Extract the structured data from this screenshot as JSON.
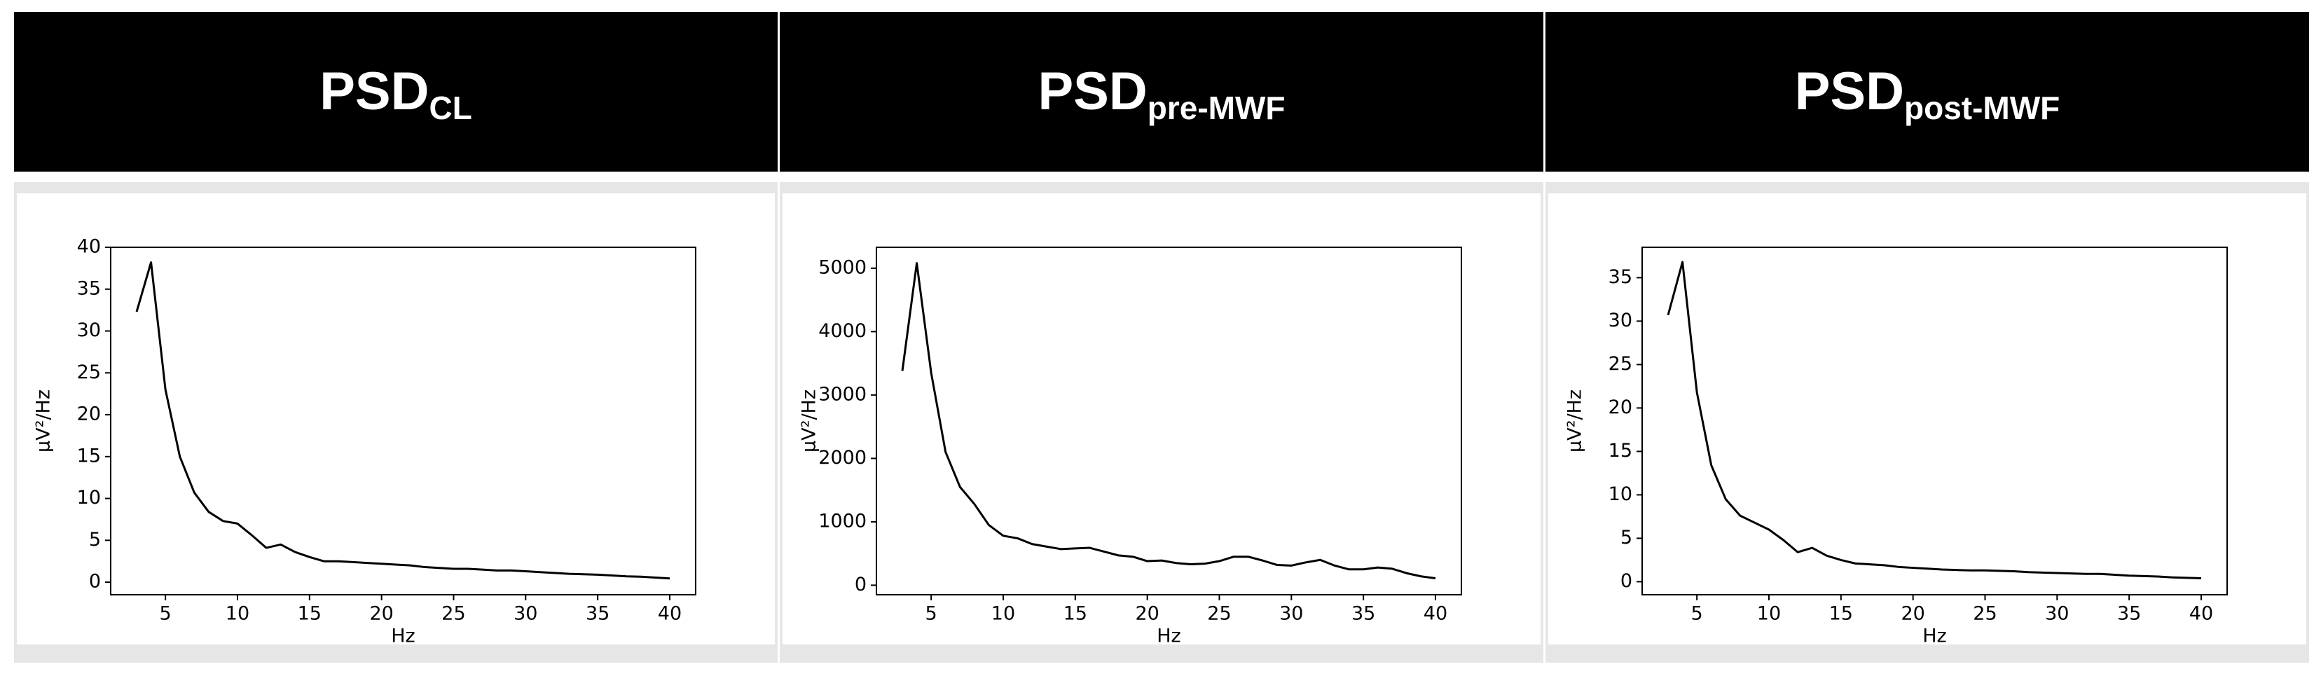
{
  "chart_data": [
    {
      "type": "line",
      "title": "PSD",
      "title_sub": "CL",
      "x_label": "Hz",
      "y_label": "μV²/Hz",
      "x": [
        3,
        4,
        5,
        6,
        7,
        8,
        9,
        10,
        11,
        12,
        13,
        14,
        15,
        16,
        17,
        18,
        19,
        20,
        21,
        22,
        23,
        24,
        25,
        26,
        27,
        28,
        29,
        30,
        31,
        32,
        33,
        34,
        35,
        36,
        37,
        38,
        39,
        40
      ],
      "values": [
        32.3,
        38.2,
        23,
        15,
        10.7,
        8.4,
        7.3,
        7.0,
        5.6,
        4.1,
        4.5,
        3.6,
        3.0,
        2.5,
        2.5,
        2.4,
        2.3,
        2.2,
        2.1,
        2.0,
        1.8,
        1.7,
        1.6,
        1.6,
        1.5,
        1.4,
        1.4,
        1.3,
        1.2,
        1.1,
        1.0,
        0.95,
        0.9,
        0.8,
        0.7,
        0.65,
        0.55,
        0.45
      ],
      "color": "#000000",
      "xlim": [
        1.2,
        41.8
      ],
      "ylim": [
        -1.5,
        40
      ],
      "xticks": [
        5,
        10,
        15,
        20,
        25,
        30,
        35,
        40
      ],
      "yticks": [
        0,
        5,
        10,
        15,
        20,
        25,
        30,
        35,
        40
      ]
    },
    {
      "type": "line",
      "title": "PSD",
      "title_sub": "pre-MWF",
      "x_label": "Hz",
      "y_label": "μV²/Hz",
      "x": [
        3,
        4,
        5,
        6,
        7,
        8,
        9,
        10,
        11,
        12,
        13,
        14,
        15,
        16,
        17,
        18,
        19,
        20,
        21,
        22,
        23,
        24,
        25,
        26,
        27,
        28,
        29,
        30,
        31,
        32,
        33,
        34,
        35,
        36,
        37,
        38,
        39,
        40
      ],
      "values": [
        3380,
        5080,
        3350,
        2100,
        1550,
        1280,
        950,
        780,
        740,
        650,
        610,
        570,
        580,
        590,
        530,
        470,
        450,
        380,
        390,
        350,
        330,
        340,
        380,
        450,
        450,
        390,
        320,
        310,
        360,
        400,
        310,
        250,
        250,
        280,
        260,
        190,
        140,
        110
      ],
      "color": "#000000",
      "xlim": [
        1.2,
        41.8
      ],
      "ylim": [
        -150,
        5330
      ],
      "xticks": [
        5,
        10,
        15,
        20,
        25,
        30,
        35,
        40
      ],
      "yticks": [
        0,
        1000,
        2000,
        3000,
        4000,
        5000
      ]
    },
    {
      "type": "line",
      "title": "PSD",
      "title_sub": "post-MWF",
      "x_label": "Hz",
      "y_label": "μV²/Hz",
      "x": [
        3,
        4,
        5,
        6,
        7,
        8,
        9,
        10,
        11,
        12,
        13,
        14,
        15,
        16,
        17,
        18,
        19,
        20,
        21,
        22,
        23,
        24,
        25,
        26,
        27,
        28,
        29,
        30,
        31,
        32,
        33,
        34,
        35,
        36,
        37,
        38,
        39,
        40
      ],
      "values": [
        30.7,
        36.8,
        21.8,
        13.4,
        9.5,
        7.6,
        6.8,
        6.0,
        4.8,
        3.4,
        3.9,
        3.0,
        2.5,
        2.1,
        2.0,
        1.9,
        1.7,
        1.6,
        1.5,
        1.4,
        1.35,
        1.3,
        1.3,
        1.25,
        1.2,
        1.1,
        1.05,
        1.0,
        0.95,
        0.9,
        0.9,
        0.8,
        0.7,
        0.65,
        0.6,
        0.5,
        0.45,
        0.4
      ],
      "color": "#000000",
      "xlim": [
        1.2,
        41.8
      ],
      "ylim": [
        -1.5,
        38.5
      ],
      "xticks": [
        5,
        10,
        15,
        20,
        25,
        30,
        35,
        40
      ],
      "yticks": [
        0,
        5,
        10,
        15,
        20,
        25,
        30,
        35
      ]
    }
  ]
}
